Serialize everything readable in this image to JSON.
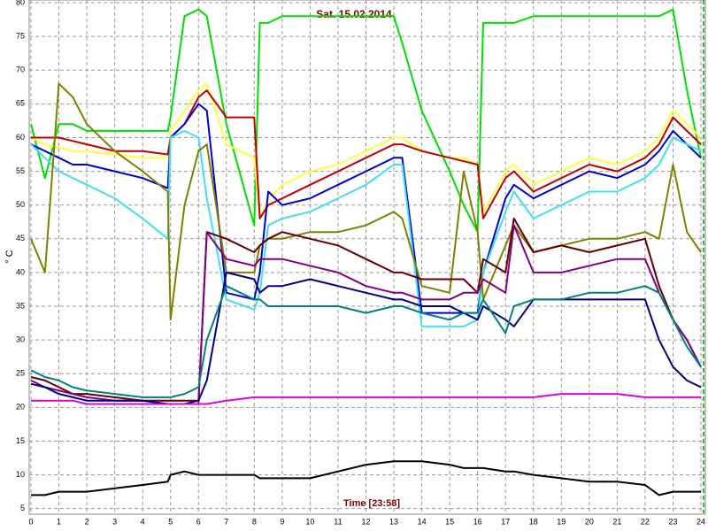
{
  "chart_data": {
    "type": "line",
    "title": "Sat. 15.02.2014",
    "xlabel": "Time [23:58]",
    "ylabel": "° C",
    "x": [
      0,
      0.5,
      1,
      1.5,
      2,
      3,
      4,
      4.9,
      5,
      5.5,
      6,
      6.3,
      7,
      8,
      8.2,
      8.5,
      9,
      10,
      11,
      12,
      13,
      13.3,
      14,
      15,
      15.5,
      16,
      16.2,
      17,
      17.3,
      18,
      19,
      20,
      21,
      22,
      22.5,
      23,
      23.5,
      24
    ],
    "xlim": [
      0,
      24
    ],
    "xticks": [
      0,
      1,
      2,
      3,
      4,
      5,
      6,
      7,
      8,
      9,
      10,
      11,
      12,
      13,
      14,
      15,
      16,
      17,
      18,
      19,
      20,
      21,
      22,
      23,
      24
    ],
    "ylim": [
      4.3,
      80.4
    ],
    "yticks": [
      5,
      10,
      15,
      20,
      25,
      30,
      35,
      40,
      45,
      50,
      55,
      60,
      65,
      70,
      75,
      80
    ],
    "grid": true,
    "series": [
      {
        "color": "#00e000",
        "values": [
          62,
          54,
          62,
          62,
          61,
          61,
          61,
          61,
          63,
          78,
          79,
          78,
          62,
          47,
          77,
          77,
          78,
          78,
          78,
          78,
          78,
          74,
          64,
          55,
          50,
          46,
          77,
          77,
          77,
          78,
          78,
          78,
          78,
          78,
          78,
          79,
          67,
          57
        ]
      },
      {
        "color": "#ffff40",
        "values": [
          60,
          59,
          58.5,
          58,
          58,
          57.5,
          57,
          57,
          61,
          64,
          67,
          68,
          59,
          57,
          48,
          51,
          53,
          55,
          56,
          58,
          60,
          60,
          58,
          57,
          57,
          56,
          49,
          55,
          56,
          53,
          55,
          57,
          56,
          58,
          60,
          64,
          62,
          60
        ]
      },
      {
        "color": "#c00000",
        "values": [
          60,
          60,
          60,
          59.5,
          59,
          58,
          58,
          57.5,
          60,
          62,
          66,
          67,
          63,
          63,
          48,
          50,
          51,
          53,
          55,
          57,
          59,
          59,
          58,
          57,
          56.5,
          56,
          48,
          54,
          55,
          52,
          54,
          56,
          55,
          57,
          59,
          63,
          61,
          59
        ]
      },
      {
        "color": "#0000d0",
        "values": [
          59,
          58,
          57,
          56,
          56,
          55,
          54,
          52.5,
          60,
          62,
          65,
          64,
          37,
          36,
          40,
          52,
          50,
          51,
          53,
          55,
          57,
          57,
          34,
          34,
          34,
          34,
          40,
          51,
          53,
          51,
          53,
          55,
          54,
          56,
          58,
          61,
          59,
          57
        ]
      },
      {
        "color": "#40e0f0",
        "values": [
          59,
          57,
          55,
          54,
          53,
          51,
          48,
          45,
          60,
          61,
          60,
          51,
          36,
          34.5,
          37,
          47,
          48,
          49,
          51,
          53,
          56,
          56,
          32,
          32,
          32,
          33,
          40,
          49,
          52,
          48,
          50,
          52,
          52,
          54,
          56,
          60,
          59,
          58
        ]
      },
      {
        "color": "#808000",
        "values": [
          45,
          40,
          68,
          66,
          62,
          58,
          55,
          52,
          33,
          50,
          58,
          59,
          40,
          40,
          44,
          45,
          45,
          46,
          46,
          47,
          49,
          48,
          38,
          37,
          55,
          46,
          36,
          44,
          47,
          43,
          44,
          45,
          45,
          46,
          45,
          56,
          46,
          43
        ]
      },
      {
        "color": "#600000",
        "values": [
          24.5,
          24,
          23,
          22,
          22,
          21.5,
          21,
          21,
          21,
          21,
          21,
          46,
          45,
          43,
          44,
          45,
          46,
          45,
          44,
          42,
          40,
          40,
          39,
          39,
          39,
          37,
          42,
          40,
          48,
          43,
          44,
          43,
          44,
          45,
          38,
          33,
          30,
          26
        ]
      },
      {
        "color": "#800080",
        "values": [
          24,
          23,
          22.5,
          22,
          21.5,
          21,
          21,
          20.5,
          20.5,
          20.5,
          20.5,
          46,
          42,
          41,
          42,
          42,
          42,
          41,
          40,
          38,
          37,
          37,
          36,
          36,
          37,
          37,
          39,
          37,
          47,
          40,
          40,
          41,
          42,
          42,
          37,
          33,
          30,
          26
        ]
      },
      {
        "color": "#000080",
        "values": [
          23.5,
          23,
          22,
          21.5,
          21,
          21,
          21,
          20.5,
          20.5,
          20.5,
          21,
          24,
          40,
          39,
          37,
          38,
          38,
          39,
          38,
          37,
          36,
          36,
          35,
          35,
          34,
          33,
          35,
          33,
          32,
          36,
          36,
          36,
          36,
          36,
          30,
          26,
          24,
          23
        ]
      },
      {
        "color": "#008080",
        "values": [
          25.5,
          24.5,
          24,
          23,
          22.5,
          22,
          21.5,
          21.5,
          21.5,
          22,
          23,
          30,
          38,
          36,
          36,
          35,
          35,
          35,
          35,
          34,
          35,
          35,
          34,
          33,
          34,
          34,
          36,
          31,
          35,
          36,
          36,
          37,
          37,
          38,
          37,
          33,
          29,
          26
        ]
      },
      {
        "color": "#e000e0",
        "values": [
          21,
          21,
          21,
          21,
          20.5,
          20.5,
          20.5,
          20.5,
          20.5,
          20.5,
          20.5,
          20.5,
          21,
          21.5,
          21.5,
          21.5,
          21.5,
          21.5,
          21.5,
          21.5,
          21.5,
          21.5,
          21.5,
          21.5,
          21.5,
          21.5,
          21.5,
          21.5,
          21.5,
          21.5,
          22,
          22,
          22,
          21.5,
          21.5,
          21.5,
          21.5,
          21.5
        ]
      },
      {
        "color": "#000000",
        "values": [
          7,
          7,
          7.5,
          7.5,
          7.5,
          8,
          8.5,
          9,
          10,
          10.5,
          10,
          10,
          10,
          10,
          9.5,
          9.5,
          9.5,
          9.5,
          10.5,
          11.5,
          12,
          12,
          12,
          11.5,
          11,
          11,
          11,
          10.5,
          10.5,
          10,
          9.5,
          9,
          9,
          8.5,
          7,
          7.5,
          7.5,
          7.5
        ]
      }
    ]
  }
}
